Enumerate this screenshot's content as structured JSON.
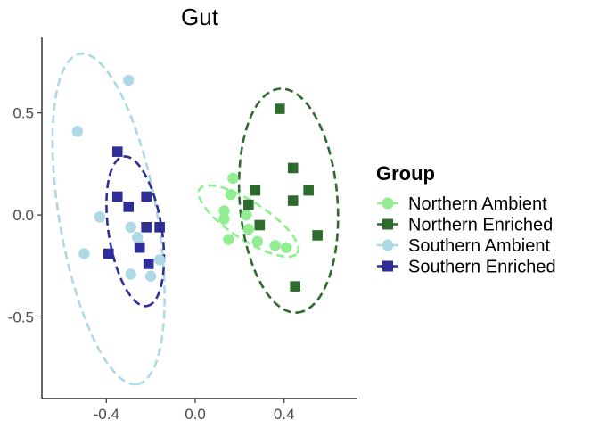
{
  "chart_data": {
    "type": "scatter",
    "title": "Gut",
    "xlabel": "",
    "ylabel": "",
    "xlim": [
      -0.69,
      0.73
    ],
    "ylim": [
      -0.9,
      0.87
    ],
    "x_ticks": [
      -0.4,
      0.0,
      0.4
    ],
    "x_tick_labels": [
      "-0.4",
      "0.0",
      "0.4"
    ],
    "y_ticks": [
      -0.5,
      0.0,
      0.5
    ],
    "y_tick_labels": [
      "-0.5",
      "0.0",
      "0.5"
    ],
    "grid": false,
    "legend": {
      "title": "Group",
      "position": "right"
    },
    "series": [
      {
        "name": "Northern Ambient",
        "color": "#90EE90",
        "marker": "circle",
        "points": [
          [
            0.17,
            0.18
          ],
          [
            0.16,
            0.1
          ],
          [
            0.13,
            0.02
          ],
          [
            0.13,
            -0.02
          ],
          [
            0.23,
            0.0
          ],
          [
            0.15,
            -0.12
          ],
          [
            0.24,
            -0.07
          ],
          [
            0.28,
            -0.13
          ],
          [
            0.36,
            -0.15
          ],
          [
            0.41,
            -0.16
          ]
        ],
        "ellipse": {
          "cx": 0.24,
          "cy": -0.03,
          "rx": 0.27,
          "ry": 0.09,
          "angle_deg": -36
        }
      },
      {
        "name": "Northern Enriched",
        "color": "#2E6B2E",
        "marker": "square",
        "points": [
          [
            0.38,
            0.52
          ],
          [
            0.44,
            0.23
          ],
          [
            0.51,
            0.12
          ],
          [
            0.27,
            0.12
          ],
          [
            0.24,
            0.05
          ],
          [
            0.44,
            0.07
          ],
          [
            0.29,
            -0.05
          ],
          [
            0.55,
            -0.1
          ],
          [
            0.45,
            -0.35
          ]
        ],
        "ellipse": {
          "cx": 0.42,
          "cy": 0.07,
          "rx": 0.55,
          "ry": 0.22,
          "angle_deg": -86
        }
      },
      {
        "name": "Southern Ambient",
        "color": "#ADD8E6",
        "marker": "circle",
        "points": [
          [
            -0.3,
            0.66
          ],
          [
            -0.53,
            0.41
          ],
          [
            -0.43,
            -0.01
          ],
          [
            -0.5,
            -0.19
          ],
          [
            -0.29,
            -0.06
          ],
          [
            -0.26,
            -0.11
          ],
          [
            -0.25,
            -0.15
          ],
          [
            -0.29,
            -0.29
          ],
          [
            -0.2,
            -0.3
          ],
          [
            -0.16,
            -0.22
          ]
        ],
        "ellipse": {
          "cx": -0.39,
          "cy": -0.02,
          "rx": 0.82,
          "ry": 0.22,
          "angle_deg": -81
        }
      },
      {
        "name": "Southern Enriched",
        "color": "#2E2E99",
        "marker": "square",
        "points": [
          [
            -0.35,
            0.31
          ],
          [
            -0.35,
            0.09
          ],
          [
            -0.3,
            0.04
          ],
          [
            -0.22,
            0.09
          ],
          [
            -0.22,
            -0.06
          ],
          [
            -0.16,
            -0.06
          ],
          [
            -0.39,
            -0.19
          ],
          [
            -0.25,
            -0.16
          ],
          [
            -0.21,
            -0.24
          ]
        ],
        "ellipse": {
          "cx": -0.27,
          "cy": -0.08,
          "rx": 0.37,
          "ry": 0.12,
          "angle_deg": -82
        }
      }
    ]
  }
}
